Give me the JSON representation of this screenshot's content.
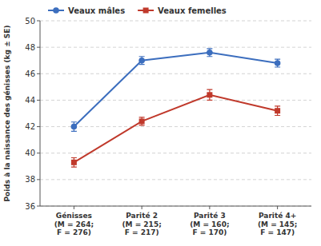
{
  "chart_data": {
    "type": "line",
    "categories": [
      "Génisses\n(M = 264;\nF = 276)",
      "Parité 2\n(M = 215;\nF = 217)",
      "Parité 3\n(M = 160;\nF = 170)",
      "Parité 4+\n(M = 145;\nF = 147)"
    ],
    "series": [
      {
        "name": "Veaux mâles",
        "color": "#3C6EBE",
        "marker": "circle",
        "values": [
          42.0,
          47.0,
          47.6,
          46.8
        ],
        "errors": [
          0.35,
          0.3,
          0.3,
          0.3
        ]
      },
      {
        "name": "Veaux femelles",
        "color": "#C0392B",
        "marker": "square",
        "values": [
          39.3,
          42.4,
          44.4,
          43.2
        ],
        "errors": [
          0.35,
          0.3,
          0.4,
          0.35
        ]
      }
    ],
    "ylabel": "Poids à la naissance des génisses (kg ± SE)",
    "ylim": [
      36,
      50
    ],
    "yticks": [
      36,
      38,
      40,
      42,
      44,
      46,
      48,
      50
    ],
    "grid": true,
    "legend": "upper left"
  }
}
